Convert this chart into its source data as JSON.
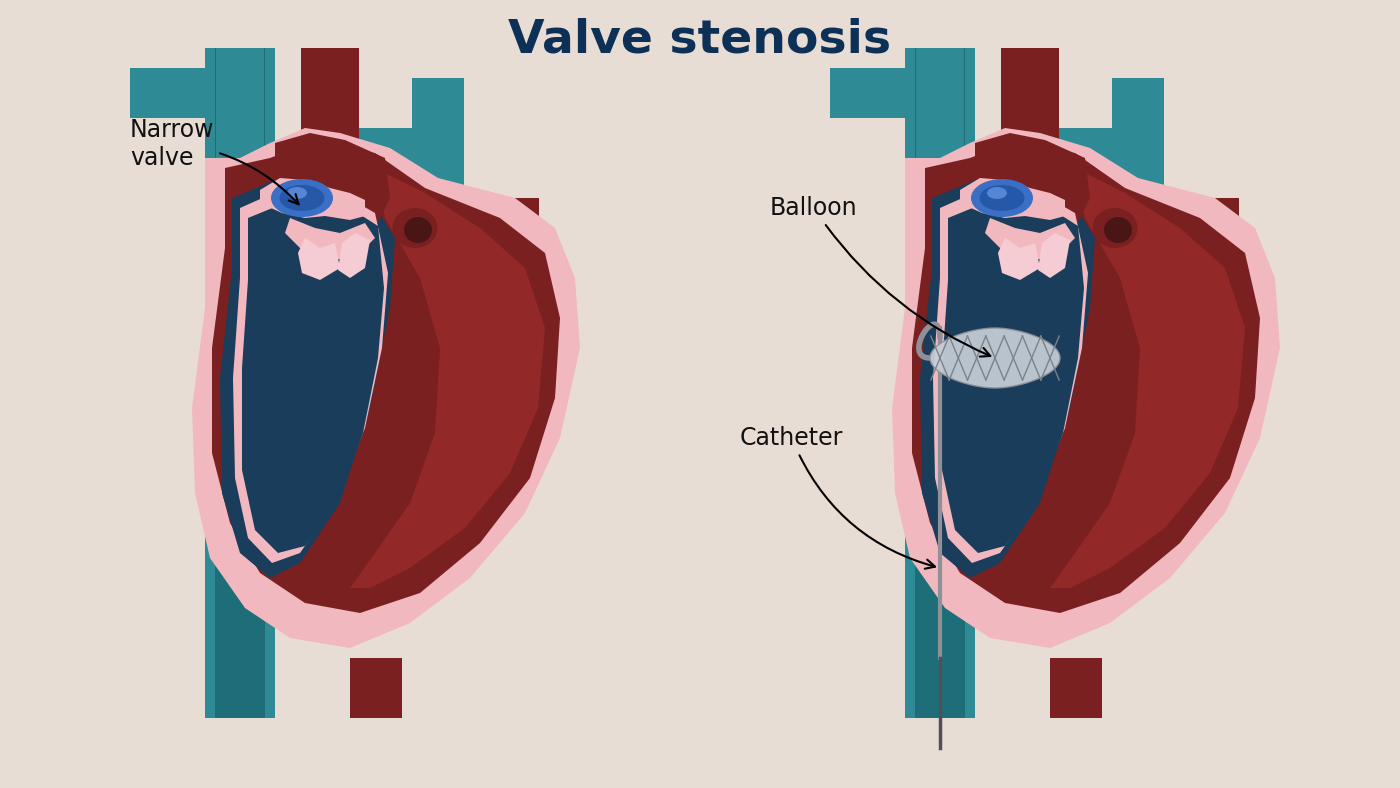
{
  "title": "Valve stenosis",
  "title_color": "#0d3057",
  "title_fontsize": 34,
  "title_fontweight": "bold",
  "bg_color": "#e8ddd5",
  "label_narrow_valve": "Narrow\nvalve",
  "label_balloon": "Balloon",
  "label_catheter": "Catheter",
  "label_color": "#111111",
  "label_fontsize": 17,
  "teal": "#2e8b96",
  "teal_dark": "#1d6e78",
  "teal_mid": "#3a9aaa",
  "red_dark": "#7a2020",
  "red_mid": "#922828",
  "red_bright": "#aa3333",
  "pink": "#f2b8c0",
  "pink_light": "#f5ccd4",
  "blue_dark": "#1a3d5c",
  "blue_mid": "#244f6e",
  "valve_blue": "#3a72c0",
  "valve_blue_dark": "#2255a0",
  "gray_balloon": "#b8bfc8",
  "gray_balloon_light": "#d5dae0",
  "gray_catheter": "#909098",
  "arrow_color": "#111111"
}
